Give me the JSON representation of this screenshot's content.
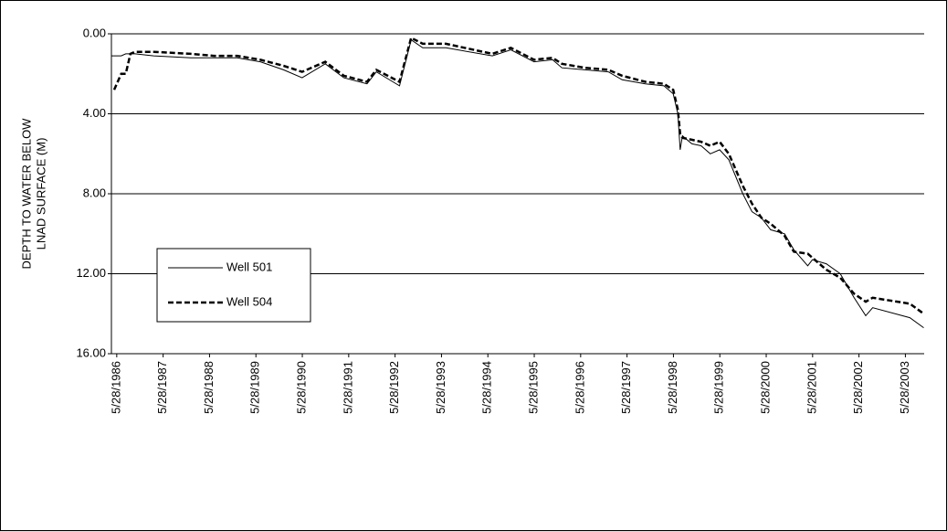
{
  "chart_data": {
    "type": "line",
    "ylabel": [
      "DEPTH TO WATER BELOW",
      "LNAD SURFACE  (M)"
    ],
    "x": [
      1986.3,
      1986.35,
      1986.5,
      1986.6,
      1986.7,
      1986.8,
      1987.2,
      1988.0,
      1988.5,
      1989.0,
      1989.5,
      1990.0,
      1990.4,
      1990.9,
      1991.3,
      1991.8,
      1992.0,
      1992.5,
      1992.75,
      1993.0,
      1993.5,
      1994.5,
      1994.9,
      1995.4,
      1995.8,
      1996.0,
      1996.5,
      1997.0,
      1997.3,
      1997.8,
      1998.2,
      1998.4,
      1998.5,
      1998.55,
      1998.6,
      1998.8,
      1999.0,
      1999.2,
      1999.4,
      1999.6,
      1999.9,
      2000.1,
      2000.3,
      2000.5,
      2000.8,
      2001.0,
      2001.3,
      2001.4,
      2001.7,
      2002.0,
      2002.3,
      2002.55,
      2002.7,
      2003.5,
      2003.8
    ],
    "series": [
      {
        "name": "Well 501",
        "color": "#000000",
        "dash": false,
        "values": [
          1.1,
          1.1,
          1.1,
          1.0,
          1.0,
          1.0,
          1.1,
          1.2,
          1.2,
          1.2,
          1.4,
          1.8,
          2.2,
          1.5,
          2.2,
          2.5,
          1.9,
          2.6,
          0.3,
          0.7,
          0.7,
          1.1,
          0.8,
          1.4,
          1.3,
          1.7,
          1.8,
          1.9,
          2.3,
          2.5,
          2.6,
          3.0,
          4.0,
          5.8,
          5.1,
          5.5,
          5.6,
          6.0,
          5.8,
          6.3,
          8.0,
          8.9,
          9.2,
          9.8,
          10.0,
          10.8,
          11.6,
          11.3,
          11.5,
          12.0,
          13.2,
          14.1,
          13.7,
          14.2,
          14.7
        ]
      },
      {
        "name": "Well 504",
        "color": "#000000",
        "dash": true,
        "values": [
          null,
          2.8,
          2.0,
          2.0,
          1.0,
          0.9,
          0.9,
          1.0,
          1.1,
          1.1,
          1.3,
          1.6,
          1.9,
          1.4,
          2.1,
          2.4,
          1.8,
          2.4,
          0.2,
          0.5,
          0.5,
          1.0,
          0.7,
          1.3,
          1.2,
          1.5,
          1.7,
          1.8,
          2.1,
          2.4,
          2.5,
          2.8,
          3.8,
          5.0,
          5.2,
          5.3,
          5.4,
          5.6,
          5.4,
          6.0,
          7.6,
          8.5,
          9.2,
          9.5,
          10.1,
          10.9,
          11.0,
          11.2,
          11.8,
          12.2,
          13.0,
          13.4,
          13.2,
          13.5,
          14.0
        ]
      }
    ],
    "xlim": [
      1986.29,
      2003.81
    ],
    "xticks": [
      {
        "value": 1986.405,
        "label": "5/28/1986"
      },
      {
        "value": 1987.405,
        "label": "5/28/1987"
      },
      {
        "value": 1988.405,
        "label": "5/28/1988"
      },
      {
        "value": 1989.405,
        "label": "5/28/1989"
      },
      {
        "value": 1990.405,
        "label": "5/28/1990"
      },
      {
        "value": 1991.405,
        "label": "5/28/1991"
      },
      {
        "value": 1992.405,
        "label": "5/28/1992"
      },
      {
        "value": 1993.405,
        "label": "5/28/1993"
      },
      {
        "value": 1994.405,
        "label": "5/28/1994"
      },
      {
        "value": 1995.405,
        "label": "5/28/1995"
      },
      {
        "value": 1996.405,
        "label": "5/28/1996"
      },
      {
        "value": 1997.405,
        "label": "5/28/1997"
      },
      {
        "value": 1998.405,
        "label": "5/28/1998"
      },
      {
        "value": 1999.405,
        "label": "5/28/1999"
      },
      {
        "value": 2000.405,
        "label": "5/28/2000"
      },
      {
        "value": 2001.405,
        "label": "5/28/2001"
      },
      {
        "value": 2002.405,
        "label": "5/28/2002"
      },
      {
        "value": 2003.405,
        "label": "5/28/2003"
      }
    ],
    "ylim": [
      0,
      16
    ],
    "invert_y": true,
    "yticks": [
      {
        "value": 0,
        "label": "0.00"
      },
      {
        "value": 4,
        "label": "4.00"
      },
      {
        "value": 8,
        "label": "8.00"
      },
      {
        "value": 12,
        "label": "12.00"
      },
      {
        "value": 16,
        "label": "16.00"
      }
    ],
    "grid": true,
    "legend": "lower-left"
  }
}
